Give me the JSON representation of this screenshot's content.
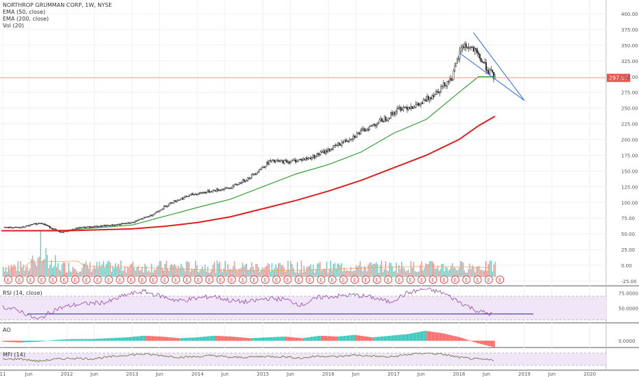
{
  "header": {
    "symbol_title": "NORTHROP GRUMMAN CORP, 1W, NYSE",
    "ema50_label": "EMA (50, close)",
    "ema200_label": "EMA (200, close)",
    "vol_label": "Vol (20)"
  },
  "price_tag": "297.97",
  "panes": {
    "rsi_label": "RSI (14, close)",
    "ao_label": "AO",
    "mfi_label": "MFI (14)"
  },
  "colors": {
    "up": "#26a69a",
    "down": "#ef5350",
    "ema50": "#2e9e2e",
    "ema200": "#e11c1c",
    "trendline": "#2962ff",
    "rsi": "#8e44ad",
    "rsi_band": "#f1e6f7",
    "mfi": "#556b2f",
    "volume_ma": "#f4a261",
    "price_line": "#ef8a5b",
    "earnings_circle": "#e05050"
  },
  "chart_data": [
    {
      "type": "candlestick",
      "title": "NORTHROP GRUMMAN CORP, 1W, NYSE",
      "x_ticks": [
        "11",
        "Jun",
        "2012",
        "Jun",
        "2013",
        "Jun",
        "2014",
        "Jun",
        "2015",
        "Jun",
        "2016",
        "Jun",
        "2017",
        "Jun",
        "2018",
        "Jun",
        "2019",
        "Jun",
        "2020"
      ],
      "y_ticks": [
        "400.00",
        "375.00",
        "350.00",
        "325.00",
        "300.00",
        "275.00",
        "250.00",
        "225.00",
        "200.00",
        "175.00",
        "150.00",
        "125.00",
        "100.00",
        "75.00",
        "50.00",
        "25.00",
        "0.00",
        "-25.00"
      ],
      "ylim": [
        -25,
        400
      ],
      "last_price": 297.97,
      "price_series": {
        "x": [
          2011.3,
          2011.6,
          2011.9,
          2012.2,
          2012.5,
          2012.8,
          2013.0,
          2013.3,
          2013.6,
          2013.9,
          2014.2,
          2014.5,
          2014.8,
          2015.1,
          2015.4,
          2015.7,
          2016.0,
          2016.3,
          2016.6,
          2016.9,
          2017.1,
          2017.4,
          2017.7,
          2017.9,
          2018.05,
          2018.2,
          2018.35,
          2018.45,
          2018.55
        ],
        "close": [
          60,
          68,
          52,
          60,
          62,
          65,
          68,
          80,
          100,
          112,
          118,
          123,
          140,
          165,
          165,
          170,
          183,
          200,
          218,
          235,
          250,
          255,
          280,
          300,
          350,
          345,
          325,
          310,
          298
        ]
      },
      "ema50": {
        "x": [
          2011.0,
          2012.0,
          2013.0,
          2013.5,
          2014.0,
          2014.5,
          2015.0,
          2015.5,
          2016.0,
          2016.5,
          2017.0,
          2017.5,
          2018.0,
          2018.3,
          2018.55
        ],
        "values": [
          55,
          56,
          64,
          78,
          92,
          105,
          125,
          145,
          160,
          180,
          210,
          232,
          275,
          300,
          300
        ]
      },
      "ema200": {
        "x": [
          2011.0,
          2012.0,
          2013.0,
          2013.5,
          2014.0,
          2014.5,
          2015.0,
          2015.5,
          2016.0,
          2016.5,
          2017.0,
          2017.5,
          2018.0,
          2018.3,
          2018.55
        ],
        "values": [
          55,
          55,
          58,
          62,
          68,
          77,
          90,
          103,
          118,
          135,
          155,
          175,
          200,
          222,
          237
        ]
      },
      "trendlines": [
        {
          "from": [
            2018.22,
            370
          ],
          "to": [
            2019.0,
            262
          ]
        },
        {
          "from": [
            2018.0,
            338
          ],
          "to": [
            2019.0,
            262
          ]
        }
      ]
    },
    {
      "type": "line",
      "title": "RSI (14, close)",
      "y_ticks": [
        "75.0000",
        "50.0000"
      ],
      "ylim": [
        25,
        85
      ],
      "band": [
        30,
        70
      ],
      "level_line": 40,
      "values": [
        52,
        45,
        30,
        48,
        55,
        58,
        60,
        72,
        78,
        70,
        62,
        66,
        70,
        62,
        60,
        66,
        65,
        55,
        68,
        70,
        72,
        68,
        60,
        75,
        82,
        76,
        60,
        45,
        38
      ]
    },
    {
      "type": "bar",
      "title": "AO",
      "y_ticks": [
        "0.0000"
      ],
      "values": [
        -1,
        -2,
        -1,
        1,
        2,
        2,
        3,
        4,
        6,
        5,
        3,
        4,
        6,
        5,
        3,
        4,
        5,
        3,
        6,
        5,
        7,
        4,
        6,
        8,
        12,
        9,
        4,
        -3,
        -8
      ]
    },
    {
      "type": "line",
      "title": "MFI (14)",
      "ylim": [
        0,
        100
      ],
      "band": [
        20,
        80
      ],
      "values": [
        48,
        52,
        40,
        50,
        55,
        52,
        60,
        70,
        75,
        68,
        60,
        62,
        68,
        58,
        60,
        64,
        62,
        55,
        66,
        62,
        70,
        65,
        60,
        72,
        80,
        74,
        58,
        50,
        45
      ]
    }
  ]
}
